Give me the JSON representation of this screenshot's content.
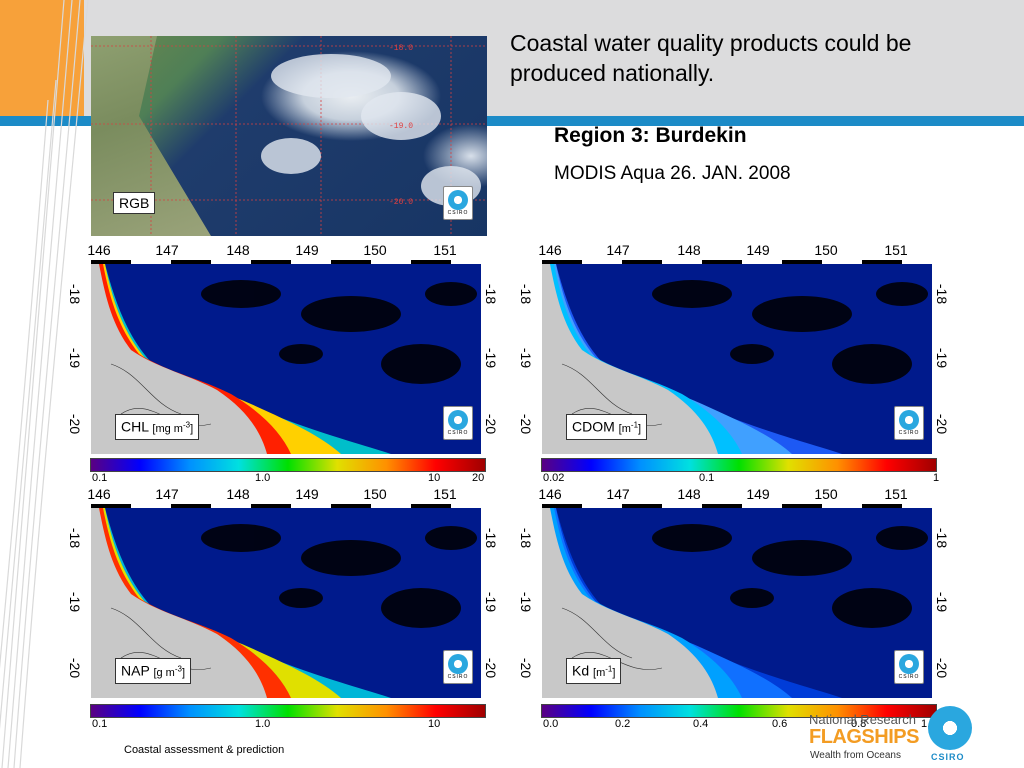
{
  "slide": {
    "title": "Coastal water quality products could be produced nationally.",
    "region_heading": "Region 3: Burdekin",
    "sensor_date": "MODIS Aqua 26. JAN. 2008",
    "footer": "Coastal assessment & prediction"
  },
  "rgb_panel": {
    "label": "RGB",
    "grid_labels": [
      "-18.0",
      "-19.0",
      "-20.0"
    ],
    "badge_text": "CSIRO"
  },
  "lon_ticks": [
    "146",
    "147",
    "148",
    "149",
    "150",
    "151"
  ],
  "lat_ticks": [
    "-18",
    "-19",
    "-20"
  ],
  "panels": [
    {
      "name": "CHL",
      "unit": "[mg m",
      "unit_sup": "-3",
      "unit_close": "]",
      "gradient": [
        "#5a0082",
        "#0000ff",
        "#0090ff",
        "#00e0e0",
        "#00e000",
        "#e0e000",
        "#ff9000",
        "#ff0000",
        "#a00000"
      ],
      "ticks": [
        "0.1",
        "1.0",
        "10",
        "20"
      ]
    },
    {
      "name": "CDOM",
      "unit": "[m",
      "unit_sup": "-1",
      "unit_close": "]",
      "gradient": [
        "#5a0082",
        "#0000ff",
        "#0090ff",
        "#00e0e0",
        "#00e000",
        "#e0e000",
        "#ff9000",
        "#ff0000",
        "#a00000"
      ],
      "ticks": [
        "0.02",
        "0.1",
        "1"
      ]
    },
    {
      "name": "NAP",
      "unit": "[g m",
      "unit_sup": "-3",
      "unit_close": "]",
      "gradient": [
        "#5a0082",
        "#0000ff",
        "#0090ff",
        "#00e0e0",
        "#00e000",
        "#e0e000",
        "#ff9000",
        "#ff0000",
        "#a00000"
      ],
      "ticks": [
        "0.1",
        "1.0",
        "10"
      ]
    },
    {
      "name": "Kd",
      "unit": "[m",
      "unit_sup": "-1",
      "unit_close": "]",
      "gradient": [
        "#5a0082",
        "#0000ff",
        "#0090ff",
        "#00e0e0",
        "#00e000",
        "#e0e000",
        "#ff9000",
        "#ff0000",
        "#a00000"
      ],
      "ticks": [
        "0.0",
        "0.2",
        "0.4",
        "0.6",
        "0.8",
        "1.0"
      ]
    }
  ],
  "logo": {
    "line1": "National Research",
    "line2": "FLAGSHIPS",
    "line3": "Wealth from Oceans",
    "org": "CSIRO"
  },
  "colors": {
    "orange": "#f7a13a",
    "blue": "#1c8bc7",
    "land": "#c8c8c8",
    "sea": "#001a8c"
  }
}
